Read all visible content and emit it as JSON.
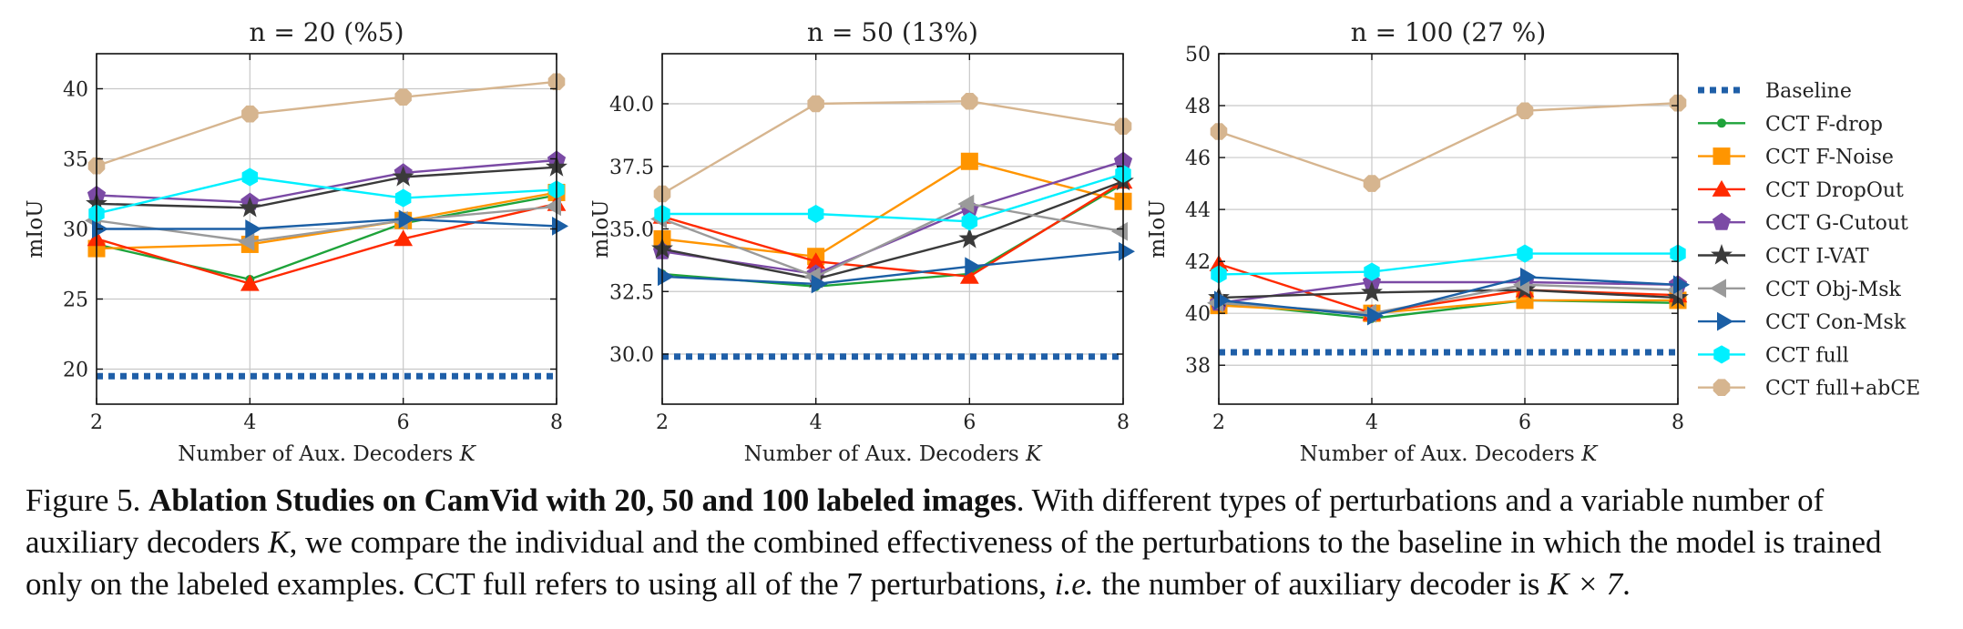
{
  "chart_data": {
    "type": "line",
    "x": [
      2,
      4,
      6,
      8
    ],
    "xlabel": "Number of Aux. Decoders",
    "xlabel_var": "K",
    "ylabel": "mIoU",
    "grid": true,
    "legend_position": "right, outside plots",
    "legend": [
      "Baseline",
      "CCT F-drop",
      "CCT F-Noise",
      "CCT DropOut",
      "CCT G-Cutout",
      "CCT I-VAT",
      "CCT Obj-Msk",
      "CCT Con-Msk",
      "CCT full",
      "CCT full+abCE"
    ],
    "styles": [
      {
        "name": "Baseline",
        "color": "#1f5fa8",
        "marker": "none",
        "dashed": true
      },
      {
        "name": "CCT F-drop",
        "color": "#1ea33a",
        "marker": "dot"
      },
      {
        "name": "CCT F-Noise",
        "color": "#ff9500",
        "marker": "square"
      },
      {
        "name": "CCT DropOut",
        "color": "#ff2a00",
        "marker": "triangle"
      },
      {
        "name": "CCT G-Cutout",
        "color": "#7b4aa5",
        "marker": "pentagon"
      },
      {
        "name": "CCT I-VAT",
        "color": "#3a3a3a",
        "marker": "star"
      },
      {
        "name": "CCT Obj-Msk",
        "color": "#9a9a9a",
        "marker": "triangle-left"
      },
      {
        "name": "CCT Con-Msk",
        "color": "#1b5fa5",
        "marker": "triangle-right"
      },
      {
        "name": "CCT full",
        "color": "#00f0ff",
        "marker": "hexagon"
      },
      {
        "name": "CCT full+abCE",
        "color": "#d6b58f",
        "marker": "octagon"
      }
    ],
    "panels": [
      {
        "title": "n = 20 (%5)",
        "ylim": [
          17.5,
          42.5
        ],
        "yticks": [
          20,
          25,
          30,
          35,
          40
        ],
        "ytick_labels": [
          "20",
          "25",
          "30",
          "35",
          "40"
        ],
        "series": [
          {
            "name": "Baseline",
            "values": [
              19.5,
              19.5,
              19.5,
              19.5
            ]
          },
          {
            "name": "CCT F-drop",
            "values": [
              28.9,
              26.4,
              30.4,
              32.4
            ]
          },
          {
            "name": "CCT F-Noise",
            "values": [
              28.6,
              28.9,
              30.6,
              32.6
            ]
          },
          {
            "name": "CCT DropOut",
            "values": [
              29.3,
              26.1,
              29.3,
              31.8
            ]
          },
          {
            "name": "CCT G-Cutout",
            "values": [
              32.4,
              31.9,
              34.0,
              34.9
            ]
          },
          {
            "name": "CCT I-VAT",
            "values": [
              31.8,
              31.5,
              33.7,
              34.4
            ]
          },
          {
            "name": "CCT Obj-Msk",
            "values": [
              30.6,
              29.1,
              30.6,
              31.6
            ]
          },
          {
            "name": "CCT Con-Msk",
            "values": [
              30.0,
              30.0,
              30.7,
              30.2
            ]
          },
          {
            "name": "CCT full",
            "values": [
              31.1,
              33.7,
              32.2,
              32.8
            ]
          },
          {
            "name": "CCT full+abCE",
            "values": [
              34.5,
              38.2,
              39.4,
              40.5
            ]
          }
        ]
      },
      {
        "title": "n = 50 (13%)",
        "ylim": [
          28.0,
          42.0
        ],
        "yticks": [
          30.0,
          32.5,
          35.0,
          37.5,
          40.0
        ],
        "ytick_labels": [
          "30.0",
          "32.5",
          "35.0",
          "37.5",
          "40.0"
        ],
        "series": [
          {
            "name": "Baseline",
            "values": [
              29.9,
              29.9,
              29.9,
              29.9
            ]
          },
          {
            "name": "CCT F-drop",
            "values": [
              33.2,
              32.7,
              33.2,
              36.8
            ]
          },
          {
            "name": "CCT F-Noise",
            "values": [
              34.6,
              33.9,
              37.7,
              36.1
            ]
          },
          {
            "name": "CCT DropOut",
            "values": [
              35.5,
              33.7,
              33.1,
              36.9
            ]
          },
          {
            "name": "CCT G-Cutout",
            "values": [
              34.1,
              33.2,
              35.8,
              37.7
            ]
          },
          {
            "name": "CCT I-VAT",
            "values": [
              34.2,
              33.0,
              34.6,
              36.9
            ]
          },
          {
            "name": "CCT Obj-Msk",
            "values": [
              35.4,
              33.1,
              36.0,
              34.9
            ]
          },
          {
            "name": "CCT Con-Msk",
            "values": [
              33.1,
              32.8,
              33.5,
              34.1
            ]
          },
          {
            "name": "CCT full",
            "values": [
              35.6,
              35.6,
              35.3,
              37.2
            ]
          },
          {
            "name": "CCT full+abCE",
            "values": [
              36.4,
              40.0,
              40.1,
              39.1
            ]
          }
        ]
      },
      {
        "title": "n = 100 (27 %)",
        "ylim": [
          36.5,
          50.0
        ],
        "yticks": [
          38,
          40,
          42,
          44,
          46,
          48,
          50
        ],
        "ytick_labels": [
          "38",
          "40",
          "42",
          "44",
          "46",
          "48",
          "50"
        ],
        "series": [
          {
            "name": "Baseline",
            "values": [
              38.5,
              38.5,
              38.5,
              38.5
            ]
          },
          {
            "name": "CCT F-drop",
            "values": [
              40.4,
              39.8,
              40.5,
              40.4
            ]
          },
          {
            "name": "CCT F-Noise",
            "values": [
              40.3,
              40.0,
              40.5,
              40.5
            ]
          },
          {
            "name": "CCT DropOut",
            "values": [
              41.9,
              40.0,
              40.9,
              40.7
            ]
          },
          {
            "name": "CCT G-Cutout",
            "values": [
              40.4,
              41.2,
              41.2,
              41.1
            ]
          },
          {
            "name": "CCT I-VAT",
            "values": [
              40.6,
              40.8,
              40.9,
              40.6
            ]
          },
          {
            "name": "CCT Obj-Msk",
            "values": [
              40.4,
              40.0,
              41.1,
              40.9
            ]
          },
          {
            "name": "CCT Con-Msk",
            "values": [
              40.5,
              39.9,
              41.4,
              41.1
            ]
          },
          {
            "name": "CCT full",
            "values": [
              41.5,
              41.6,
              42.3,
              42.3
            ]
          },
          {
            "name": "CCT full+abCE",
            "values": [
              47.0,
              45.0,
              47.8,
              48.1
            ]
          }
        ]
      }
    ]
  },
  "caption": {
    "label": "Figure 5.",
    "bold": "Ablation Studies on CamVid with 20, 50 and 100 labeled images",
    "text1": ". With different types of perturbations and a variable number of auxiliary decoders ",
    "var_k": "K",
    "text2": ", we compare the individual and the combined effectiveness of the perturbations to the baseline in which the model is trained only on the labeled examples. CCT full refers to using all of the 7 perturbations, ",
    "ie": "i.e.",
    "text3": " the number of auxiliary decoder is ",
    "formula": "K × 7",
    "end": "."
  }
}
